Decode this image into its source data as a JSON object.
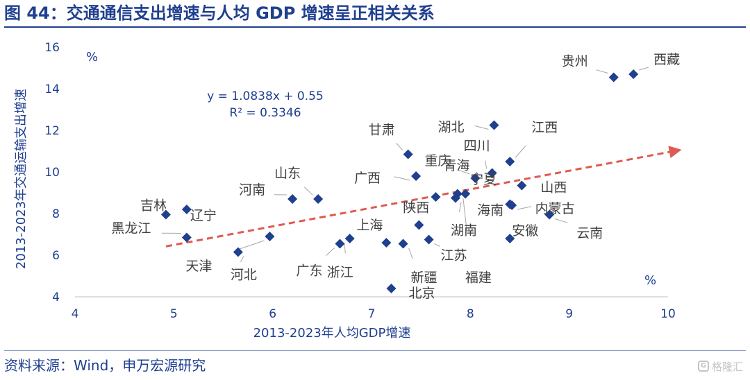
{
  "header": {
    "title": "图 44：交通通信支出增速与人均 GDP 增速呈正相关关系"
  },
  "footer": {
    "source": "资料来源：Wind，申万宏源研究",
    "watermark": "格隆汇"
  },
  "chart_data": {
    "type": "scatter",
    "title": "",
    "xlabel": "2013-2023年人均GDP增速",
    "ylabel": "2013-2023年交通运输支出增速",
    "x_unit": "%",
    "y_unit": "%",
    "xlim": [
      4,
      10
    ],
    "ylim": [
      4,
      16
    ],
    "xticks": [
      4,
      5,
      6,
      7,
      8,
      9,
      10
    ],
    "yticks": [
      4,
      6,
      8,
      10,
      12,
      14,
      16
    ],
    "grid": false,
    "marker": "diamond",
    "marker_color": "#1f3f8f",
    "trendline": {
      "equation": "y = 1.0838x + 0.55",
      "r_squared": "R² = 0.3346",
      "slope": 1.0838,
      "intercept": 0.55,
      "color": "#e05a4f",
      "style": "dashed-arrow"
    },
    "points": [
      {
        "name": "西藏",
        "x": 9.65,
        "y": 14.7
      },
      {
        "name": "贵州",
        "x": 9.45,
        "y": 14.55
      },
      {
        "name": "湖北",
        "x": 8.24,
        "y": 12.25
      },
      {
        "name": "江西",
        "x": 8.4,
        "y": 10.5
      },
      {
        "name": "四川",
        "x": 8.22,
        "y": 9.95
      },
      {
        "name": "甘肃",
        "x": 7.37,
        "y": 10.85
      },
      {
        "name": "广西",
        "x": 7.45,
        "y": 9.8
      },
      {
        "name": "重庆",
        "x": 8.05,
        "y": 9.7
      },
      {
        "name": "青海",
        "x": 7.65,
        "y": 8.8
      },
      {
        "name": "宁夏",
        "x": 7.95,
        "y": 8.95
      },
      {
        "name": "湖南",
        "x": 7.85,
        "y": 8.75
      },
      {
        "name": "山西",
        "x": 8.52,
        "y": 9.35
      },
      {
        "name": "内蒙古",
        "x": 8.42,
        "y": 8.4
      },
      {
        "name": "海南",
        "x": 8.4,
        "y": 8.45
      },
      {
        "name": "云南",
        "x": 8.8,
        "y": 7.95
      },
      {
        "name": "安徽",
        "x": 8.4,
        "y": 6.8
      },
      {
        "name": "山东",
        "x": 6.46,
        "y": 8.7
      },
      {
        "name": "河南",
        "x": 6.2,
        "y": 8.7
      },
      {
        "name": "吉林",
        "x": 4.92,
        "y": 7.95
      },
      {
        "name": "辽宁",
        "x": 5.13,
        "y": 8.2
      },
      {
        "name": "黑龙江",
        "x": 5.13,
        "y": 6.85
      },
      {
        "name": "天津",
        "x": 5.97,
        "y": 6.9
      },
      {
        "name": "河北",
        "x": 5.65,
        "y": 6.15
      },
      {
        "name": "陕西",
        "x": 7.48,
        "y": 7.45
      },
      {
        "name": "上海",
        "x": 7.15,
        "y": 6.6
      },
      {
        "name": "新疆",
        "x": 7.32,
        "y": 6.55
      },
      {
        "name": "江苏",
        "x": 7.58,
        "y": 6.75
      },
      {
        "name": "广东",
        "x": 6.68,
        "y": 6.55
      },
      {
        "name": "浙江",
        "x": 6.78,
        "y": 6.8
      },
      {
        "name": "北京",
        "x": 7.2,
        "y": 4.4
      },
      {
        "name": "福建",
        "x": 7.87,
        "y": 8.95
      }
    ]
  }
}
